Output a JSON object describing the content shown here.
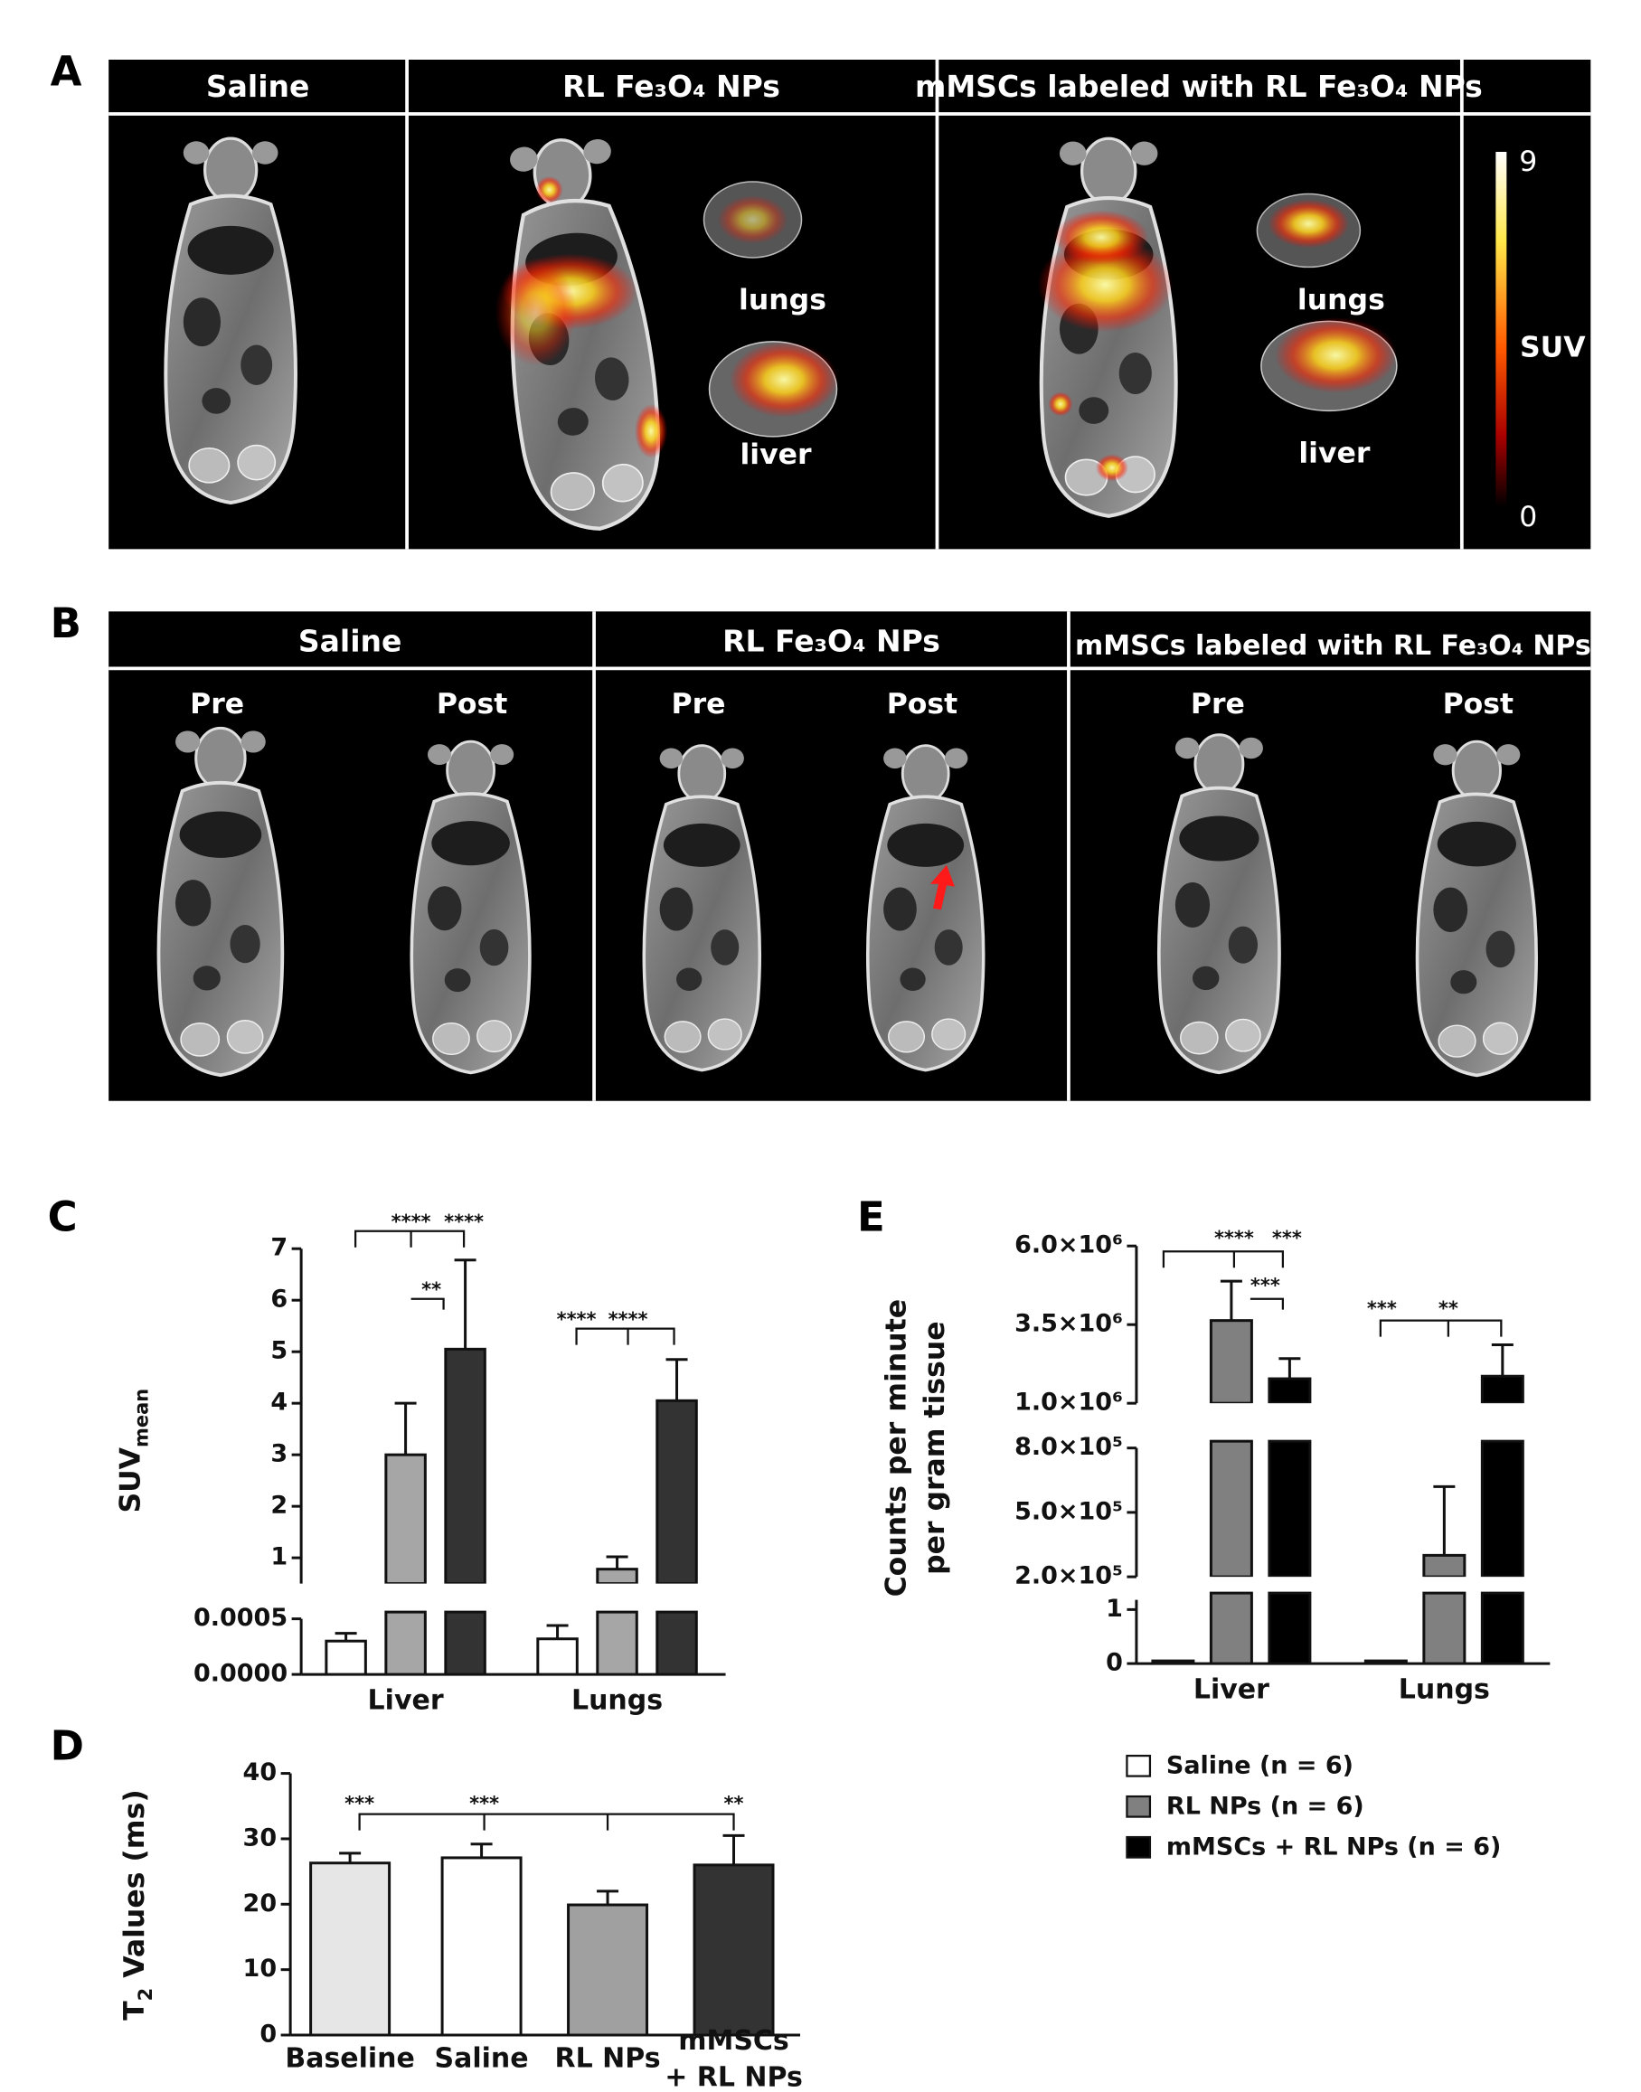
{
  "panels": {
    "A": {
      "label": "A",
      "headers": [
        "Saline",
        "RL Fe₃O₄ NPs",
        "mMSCs labeled with RL Fe₃O₄ NPs"
      ],
      "organs": [
        "lungs",
        "liver",
        "lungs",
        "liver"
      ],
      "colorbar": {
        "label": "SUV",
        "range": [
          0,
          9
        ]
      }
    },
    "B": {
      "label": "B",
      "headers": [
        "Saline",
        "RL Fe₃O₄ NPs",
        "mMSCs labeled with RL Fe₃O₄ NPs"
      ],
      "phases": [
        "Pre",
        "Post",
        "Pre",
        "Post",
        "Pre",
        "Post"
      ]
    }
  },
  "chart_data": [
    {
      "panel": "C",
      "type": "bar",
      "ylabel": [
        "SUV",
        "mean"
      ],
      "categories": [
        "Liver",
        "Lungs"
      ],
      "series": [
        {
          "color": "#ffffff",
          "values": [
            0.0003,
            0.00032
          ],
          "errors": [
            7e-05,
            0.00012
          ]
        },
        {
          "color": "#a6a6a6",
          "values": [
            3.0,
            0.78
          ],
          "errors": [
            1.0,
            0.24
          ]
        },
        {
          "color": "#333333",
          "values": [
            5.05,
            4.05
          ],
          "errors": [
            1.73,
            0.8
          ]
        }
      ],
      "axis_segments": [
        {
          "ylim": [
            0,
            0.0005
          ],
          "yticks": [
            {
              "value": 0,
              "label": "0.0000"
            },
            {
              "value": 0.0005,
              "label": "0.0005"
            }
          ]
        },
        {
          "ylim": [
            0.5,
            7
          ],
          "yticks": [
            1,
            2,
            3,
            4,
            5,
            6,
            7
          ]
        }
      ],
      "annotations": [
        "****",
        "****",
        "**",
        "****",
        "****"
      ]
    },
    {
      "panel": "D",
      "type": "bar",
      "ylabel": [
        "T",
        "2",
        " Values (ms)"
      ],
      "categories": [
        "Baseline",
        "Saline",
        "RL NPs",
        "mMSCs\n+ RL NPs"
      ],
      "values": [
        26.3,
        27.1,
        19.9,
        26.0
      ],
      "errors": [
        1.5,
        2.1,
        2.1,
        4.5
      ],
      "colors": [
        "#e6e6e6",
        "#ffffff",
        "#a0a0a0",
        "#333333"
      ],
      "ylim": [
        0,
        40
      ],
      "yticks": [
        0,
        10,
        20,
        30,
        40
      ],
      "annotations": [
        "***",
        "***",
        "**"
      ]
    },
    {
      "panel": "E",
      "type": "bar",
      "ylabel": "Counts per minute\nper gram tissue",
      "categories": [
        "Liver",
        "Lungs"
      ],
      "series": [
        {
          "name": "Saline (n = 6)",
          "color": "#ffffff",
          "values": [
            0.05,
            0.05
          ],
          "errors": [
            null,
            null
          ]
        },
        {
          "name": "RL NPs (n = 6)",
          "color": "#808080",
          "values": [
            3630000,
            300000
          ],
          "errors": [
            1250000,
            320000
          ]
        },
        {
          "name": "mMSCs + RL NPs (n = 6)",
          "color": "#000000",
          "values": [
            1780000,
            1860000
          ],
          "errors": [
            640000,
            1000000
          ]
        }
      ],
      "axis_segments": [
        {
          "ylim": [
            0,
            1.18
          ],
          "yticks": [
            0,
            1
          ]
        },
        {
          "ylim": [
            200000,
            800000
          ],
          "yticks": [
            {
              "value": 200000,
              "label": "2.0×10⁵"
            },
            {
              "value": 500000,
              "label": "5.0×10⁵"
            },
            {
              "value": 800000,
              "label": "8.0×10⁵"
            }
          ]
        },
        {
          "ylim": [
            1000000,
            6000000
          ],
          "yticks": [
            {
              "value": 1000000,
              "label": "1.0×10⁶"
            },
            {
              "value": 3500000,
              "label": "3.5×10⁶"
            },
            {
              "value": 6000000,
              "label": "6.0×10⁶"
            }
          ]
        }
      ],
      "annotations": [
        "****",
        "***",
        "***",
        "***",
        "**"
      ]
    }
  ]
}
